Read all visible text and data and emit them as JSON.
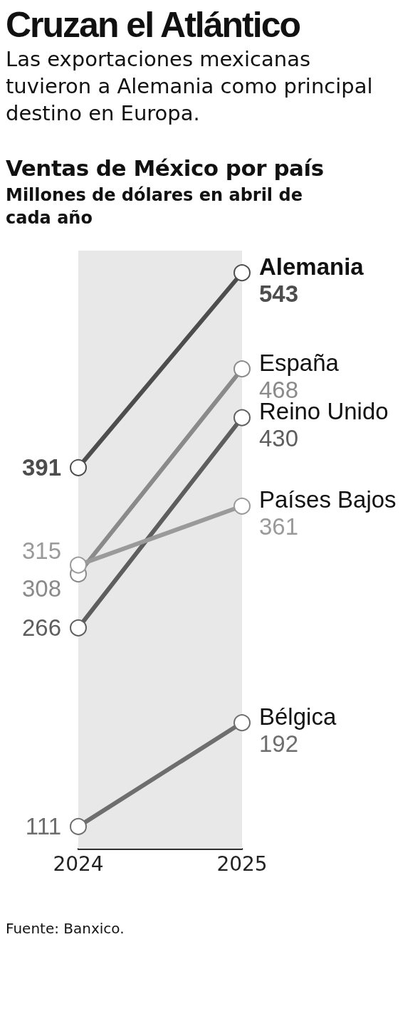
{
  "chart_data": {
    "type": "line",
    "title": "Cruzan el Atlántico",
    "subtitle": "Las exportaciones mexicanas tuvieron a Alemania como principal destino en Europa.",
    "ylabel": "Millones de dólares en abril de cada año",
    "annotations": [
      "Ventas de México por país",
      "Fuente: Banxico."
    ],
    "categories": [
      "2024",
      "2025"
    ],
    "series": [
      {
        "name": "Alemania",
        "color": "#4d4d4d",
        "values": [
          391,
          543
        ]
      },
      {
        "name": "España",
        "color": "#8a8a8a",
        "values": [
          308,
          468
        ]
      },
      {
        "name": "Reino Unido",
        "color": "#5e5e5e",
        "values": [
          266,
          430
        ]
      },
      {
        "name": "Países Bajos",
        "color": "#9a9a9a",
        "values": [
          315,
          361
        ]
      },
      {
        "name": "Bélgica",
        "color": "#6e6e6e",
        "values": [
          111,
          192
        ]
      }
    ],
    "bands": [
      {
        "axis": "x",
        "from": "2024",
        "to": "2025",
        "color": "#e8e8e8"
      }
    ],
    "marker": "circle",
    "line_style": "solid",
    "data_labels": true,
    "grid": false,
    "legend": false
  }
}
